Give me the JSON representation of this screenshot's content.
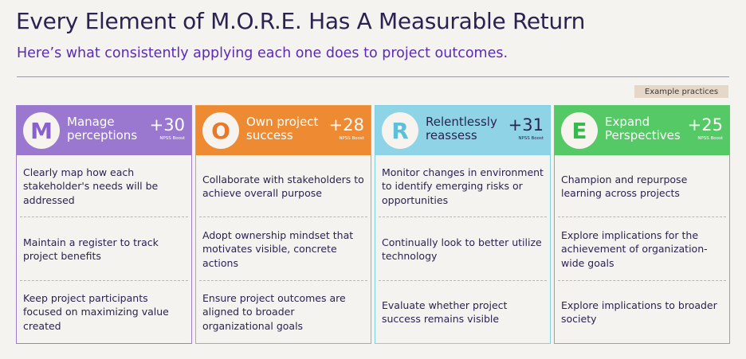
{
  "header": {
    "title": "Every Element of M.O.R.E. Has A Measurable Return",
    "subtitle": "Here’s what consistently applying each one does to project outcomes.",
    "badge": "Example practices"
  },
  "colors": {
    "M": "#9a78cf",
    "O": "#ee8b32",
    "R": "#8fd4e6",
    "E": "#55c965",
    "subtitle": "#5a2ab8"
  },
  "columns": [
    {
      "letter": "M",
      "name_line1": "Manage",
      "name_line2": "perceptions",
      "score": "+30",
      "score_label": "NPSS Boost",
      "practices": [
        "Clearly map how each stakeholder's needs will be addressed",
        "Maintain a register to track project benefits",
        "Keep project participants focused on maximizing value created"
      ]
    },
    {
      "letter": "O",
      "name_line1": "Own project",
      "name_line2": "success",
      "score": "+28",
      "score_label": "NPSS Boost",
      "practices": [
        "Collaborate with stakeholders to achieve overall purpose",
        "Adopt ownership mindset that motivates visible, concrete actions",
        "Ensure project outcomes are aligned to broader organizational goals"
      ]
    },
    {
      "letter": "R",
      "name_line1": "Relentlessly",
      "name_line2": "reassess",
      "score": "+31",
      "score_label": "NPSS Boost",
      "practices": [
        "Monitor changes in environment to identify emerging risks or opportunities",
        "Continually look to better utilize technology",
        "Evaluate whether project success remains visible"
      ]
    },
    {
      "letter": "E",
      "name_line1": "Expand",
      "name_line2": "Perspectives",
      "score": "+25",
      "score_label": "NPSS Boost",
      "practices": [
        "Champion and repurpose learning across projects",
        "Explore implications for the achievement of organization-wide goals",
        "Explore implications to broader society"
      ]
    }
  ]
}
